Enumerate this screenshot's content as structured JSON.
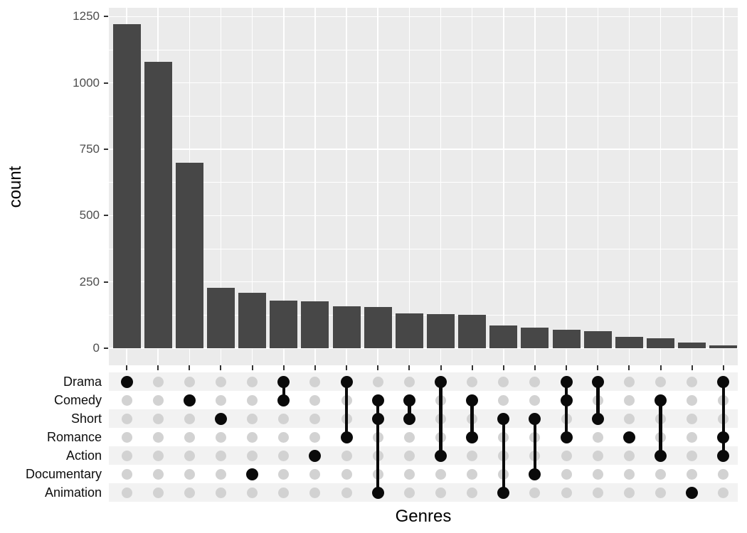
{
  "chart_data": {
    "type": "bar",
    "variant": "upset-plot",
    "title": "",
    "xlabel": "Genres",
    "ylabel": "count",
    "ylim": [
      0,
      1250
    ],
    "yticks": [
      0,
      250,
      500,
      750,
      1000,
      1250
    ],
    "yminor": [
      125,
      375,
      625,
      875,
      1125
    ],
    "grid": "major+minor white on grey panel",
    "legend": "none",
    "sets": [
      "Drama",
      "Comedy",
      "Short",
      "Romance",
      "Action",
      "Documentary",
      "Animation"
    ],
    "intersections": [
      {
        "sets": [
          "Drama"
        ],
        "count": 1222
      },
      {
        "sets": [],
        "count": 1080
      },
      {
        "sets": [
          "Comedy"
        ],
        "count": 698
      },
      {
        "sets": [
          "Short"
        ],
        "count": 228
      },
      {
        "sets": [
          "Documentary"
        ],
        "count": 210
      },
      {
        "sets": [
          "Drama",
          "Comedy"
        ],
        "count": 180
      },
      {
        "sets": [
          "Action"
        ],
        "count": 177
      },
      {
        "sets": [
          "Drama",
          "Romance"
        ],
        "count": 158
      },
      {
        "sets": [
          "Comedy",
          "Short",
          "Animation"
        ],
        "count": 155
      },
      {
        "sets": [
          "Comedy",
          "Short"
        ],
        "count": 131
      },
      {
        "sets": [
          "Drama",
          "Action"
        ],
        "count": 129
      },
      {
        "sets": [
          "Comedy",
          "Romance"
        ],
        "count": 127
      },
      {
        "sets": [
          "Short",
          "Animation"
        ],
        "count": 86
      },
      {
        "sets": [
          "Short",
          "Documentary"
        ],
        "count": 78
      },
      {
        "sets": [
          "Drama",
          "Comedy",
          "Romance"
        ],
        "count": 70
      },
      {
        "sets": [
          "Drama",
          "Short"
        ],
        "count": 63
      },
      {
        "sets": [
          "Romance"
        ],
        "count": 42
      },
      {
        "sets": [
          "Comedy",
          "Action"
        ],
        "count": 38
      },
      {
        "sets": [
          "Animation"
        ],
        "count": 21
      },
      {
        "sets": [
          "Drama",
          "Romance",
          "Action"
        ],
        "count": 11
      }
    ],
    "colors": {
      "bar": "#474747",
      "panel_bg": "#EBEBEB",
      "gridline": "#FFFFFF",
      "matrix_stripe": "#F2F2F2",
      "dot_empty": "#D2D2D2",
      "dot_filled": "#0A0A0A",
      "tick_mark": "#333333",
      "tick_label": "#4D4D4D",
      "axis_title": "#000000"
    }
  }
}
